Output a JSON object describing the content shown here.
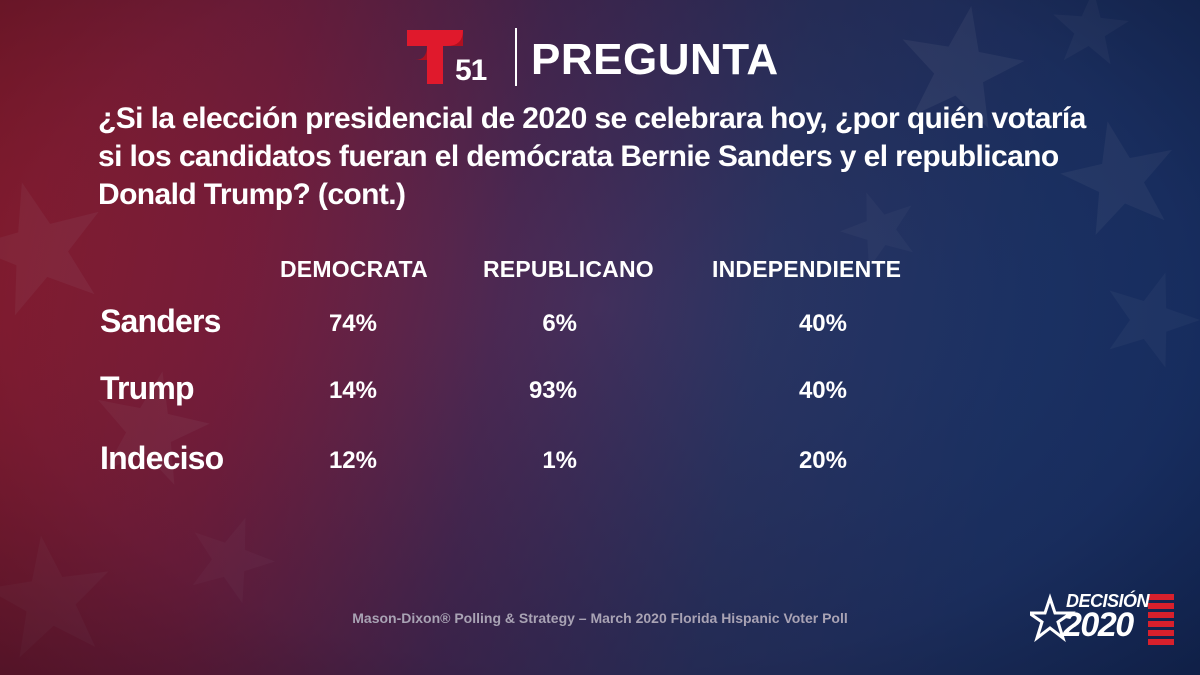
{
  "header": {
    "logo_number": "51",
    "title": "PREGUNTA"
  },
  "question": "¿Si la elección presidencial de 2020 se celebrara hoy, ¿por quién votaría si los candidatos fueran el demócrata Bernie Sanders y el republicano Donald Trump? (cont.)",
  "colors": {
    "logo_red": "#e0192c",
    "text": "#ffffff",
    "source_text": "#a9a3b4"
  },
  "chart_data": {
    "type": "table",
    "columns": [
      "DEMOCRATA",
      "REPUBLICANO",
      "INDEPENDIENTE"
    ],
    "rows": [
      {
        "label": "Sanders",
        "values": [
          "74%",
          "6%",
          "40%"
        ]
      },
      {
        "label": "Trump",
        "values": [
          "14%",
          "93%",
          "40%"
        ]
      },
      {
        "label": "Indeciso",
        "values": [
          "12%",
          "1%",
          "20%"
        ]
      }
    ]
  },
  "source": "Mason-Dixon® Polling & Strategy – March 2020 Florida Hispanic Voter Poll",
  "badge": {
    "word": "DECISIÓN",
    "year": "2020"
  }
}
